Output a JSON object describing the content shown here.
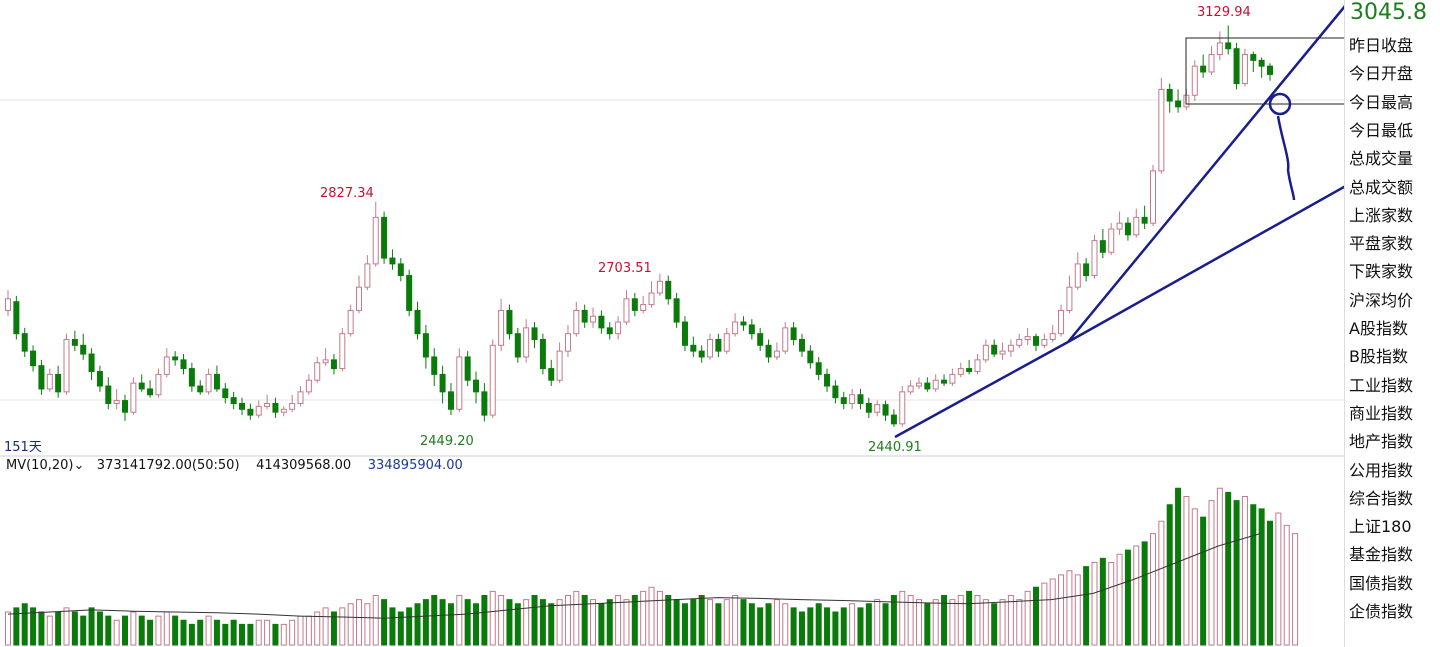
{
  "header": {
    "current_price": "3045.8"
  },
  "sidebar": {
    "items": [
      "昨日收盘",
      "今日开盘",
      "今日最高",
      "今日最低",
      "总成交量",
      "总成交额",
      "上涨家数",
      "平盘家数",
      "下跌家数",
      "沪深均价",
      "A股指数",
      "B股指数",
      "工业指数",
      "商业指数",
      "地产指数",
      "公用指数",
      "综合指数",
      "上证180",
      "基金指数",
      "国债指数",
      "企债指数"
    ]
  },
  "labels": {
    "days": "151天",
    "indicator": "MV(10,20)",
    "ma_main": "373141792.00(50:50)",
    "ma10": "414309568.00",
    "ma20": "334895904.00"
  },
  "colors": {
    "up": "#c8102e",
    "down": "#0a7a0a",
    "trend": "#1a1e8c"
  },
  "chart_data": {
    "type": "candlestick",
    "annotations": [
      {
        "text": "2827.34",
        "type": "high",
        "index": 44
      },
      {
        "text": "2449.20",
        "type": "low",
        "index": 57
      },
      {
        "text": "2703.51",
        "type": "high",
        "index": 79
      },
      {
        "text": "2440.91",
        "type": "low",
        "index": 110
      },
      {
        "text": "3129.94",
        "type": "high",
        "index": 151
      }
    ],
    "candles": [
      [
        2640,
        2660,
        2675,
        2630
      ],
      [
        2655,
        2600,
        2665,
        2590
      ],
      [
        2600,
        2570,
        2610,
        2560
      ],
      [
        2570,
        2545,
        2580,
        2535
      ],
      [
        2545,
        2505,
        2555,
        2495
      ],
      [
        2505,
        2530,
        2540,
        2500
      ],
      [
        2530,
        2500,
        2545,
        2490
      ],
      [
        2500,
        2590,
        2600,
        2495
      ],
      [
        2590,
        2580,
        2605,
        2570
      ],
      [
        2580,
        2565,
        2600,
        2555
      ],
      [
        2565,
        2535,
        2575,
        2520
      ],
      [
        2535,
        2510,
        2545,
        2500
      ],
      [
        2510,
        2480,
        2525,
        2470
      ],
      [
        2480,
        2485,
        2505,
        2470
      ],
      [
        2485,
        2465,
        2495,
        2450
      ],
      [
        2465,
        2515,
        2525,
        2460
      ],
      [
        2515,
        2505,
        2530,
        2500
      ],
      [
        2505,
        2495,
        2520,
        2490
      ],
      [
        2495,
        2530,
        2540,
        2490
      ],
      [
        2530,
        2560,
        2575,
        2525
      ],
      [
        2560,
        2555,
        2570,
        2545
      ],
      [
        2555,
        2540,
        2565,
        2530
      ],
      [
        2540,
        2510,
        2550,
        2500
      ],
      [
        2510,
        2500,
        2520,
        2495
      ],
      [
        2500,
        2530,
        2540,
        2495
      ],
      [
        2530,
        2505,
        2545,
        2500
      ],
      [
        2505,
        2490,
        2515,
        2480
      ],
      [
        2490,
        2480,
        2500,
        2470
      ],
      [
        2480,
        2470,
        2490,
        2460
      ],
      [
        2470,
        2460,
        2480,
        2452
      ],
      [
        2460,
        2475,
        2485,
        2455
      ],
      [
        2475,
        2480,
        2495,
        2470
      ],
      [
        2480,
        2465,
        2490,
        2455
      ],
      [
        2465,
        2470,
        2475,
        2458
      ],
      [
        2470,
        2480,
        2495,
        2465
      ],
      [
        2480,
        2500,
        2510,
        2475
      ],
      [
        2500,
        2520,
        2530,
        2495
      ],
      [
        2520,
        2550,
        2560,
        2515
      ],
      [
        2550,
        2555,
        2575,
        2545
      ],
      [
        2555,
        2540,
        2565,
        2530
      ],
      [
        2540,
        2600,
        2610,
        2535
      ],
      [
        2600,
        2640,
        2650,
        2595
      ],
      [
        2640,
        2680,
        2700,
        2635
      ],
      [
        2680,
        2720,
        2735,
        2675
      ],
      [
        2720,
        2800,
        2827,
        2715
      ],
      [
        2800,
        2730,
        2810,
        2720
      ],
      [
        2730,
        2720,
        2745,
        2710
      ],
      [
        2720,
        2700,
        2730,
        2690
      ],
      [
        2700,
        2640,
        2710,
        2630
      ],
      [
        2640,
        2600,
        2655,
        2590
      ],
      [
        2600,
        2560,
        2615,
        2540
      ],
      [
        2560,
        2530,
        2575,
        2510
      ],
      [
        2530,
        2500,
        2545,
        2480
      ],
      [
        2500,
        2470,
        2515,
        2460
      ],
      [
        2470,
        2560,
        2575,
        2465
      ],
      [
        2560,
        2520,
        2570,
        2510
      ],
      [
        2520,
        2500,
        2535,
        2480
      ],
      [
        2500,
        2460,
        2515,
        2449
      ],
      [
        2460,
        2580,
        2590,
        2455
      ],
      [
        2580,
        2640,
        2660,
        2570
      ],
      [
        2640,
        2600,
        2650,
        2590
      ],
      [
        2600,
        2560,
        2610,
        2550
      ],
      [
        2560,
        2610,
        2625,
        2550
      ],
      [
        2610,
        2590,
        2620,
        2575
      ],
      [
        2590,
        2540,
        2600,
        2530
      ],
      [
        2540,
        2520,
        2555,
        2510
      ],
      [
        2520,
        2570,
        2585,
        2515
      ],
      [
        2570,
        2600,
        2615,
        2560
      ],
      [
        2600,
        2640,
        2655,
        2595
      ],
      [
        2640,
        2620,
        2650,
        2610
      ],
      [
        2620,
        2630,
        2645,
        2610
      ],
      [
        2630,
        2610,
        2640,
        2600
      ],
      [
        2610,
        2600,
        2620,
        2590
      ],
      [
        2600,
        2620,
        2630,
        2590
      ],
      [
        2620,
        2660,
        2675,
        2615
      ],
      [
        2660,
        2640,
        2670,
        2630
      ],
      [
        2640,
        2650,
        2665,
        2635
      ],
      [
        2650,
        2670,
        2690,
        2645
      ],
      [
        2670,
        2690,
        2703,
        2665
      ],
      [
        2690,
        2660,
        2700,
        2650
      ],
      [
        2660,
        2620,
        2670,
        2610
      ],
      [
        2620,
        2580,
        2630,
        2570
      ],
      [
        2580,
        2570,
        2595,
        2560
      ],
      [
        2570,
        2560,
        2580,
        2550
      ],
      [
        2560,
        2590,
        2600,
        2555
      ],
      [
        2590,
        2570,
        2600,
        2560
      ],
      [
        2570,
        2600,
        2610,
        2565
      ],
      [
        2600,
        2620,
        2635,
        2595
      ],
      [
        2620,
        2615,
        2630,
        2605
      ],
      [
        2615,
        2600,
        2625,
        2590
      ],
      [
        2600,
        2580,
        2610,
        2570
      ],
      [
        2580,
        2560,
        2590,
        2550
      ],
      [
        2560,
        2570,
        2585,
        2555
      ],
      [
        2570,
        2610,
        2620,
        2565
      ],
      [
        2610,
        2590,
        2620,
        2580
      ],
      [
        2590,
        2570,
        2600,
        2560
      ],
      [
        2570,
        2550,
        2580,
        2540
      ],
      [
        2550,
        2530,
        2560,
        2520
      ],
      [
        2530,
        2510,
        2540,
        2500
      ],
      [
        2510,
        2490,
        2520,
        2480
      ],
      [
        2490,
        2480,
        2500,
        2470
      ],
      [
        2480,
        2495,
        2505,
        2470
      ],
      [
        2495,
        2480,
        2505,
        2470
      ],
      [
        2480,
        2465,
        2490,
        2455
      ],
      [
        2465,
        2478,
        2485,
        2458
      ],
      [
        2478,
        2460,
        2485,
        2450
      ],
      [
        2460,
        2445,
        2470,
        2440
      ],
      [
        2445,
        2500,
        2510,
        2440
      ],
      [
        2500,
        2510,
        2520,
        2495
      ],
      [
        2510,
        2515,
        2525,
        2505
      ],
      [
        2515,
        2505,
        2525,
        2500
      ],
      [
        2505,
        2520,
        2530,
        2500
      ],
      [
        2520,
        2515,
        2530,
        2510
      ],
      [
        2515,
        2530,
        2540,
        2510
      ],
      [
        2530,
        2540,
        2550,
        2525
      ],
      [
        2540,
        2535,
        2555,
        2530
      ],
      [
        2535,
        2555,
        2565,
        2530
      ],
      [
        2555,
        2580,
        2590,
        2550
      ],
      [
        2580,
        2565,
        2590,
        2560
      ],
      [
        2565,
        2570,
        2585,
        2555
      ],
      [
        2570,
        2580,
        2590,
        2560
      ],
      [
        2580,
        2590,
        2600,
        2575
      ],
      [
        2590,
        2595,
        2610,
        2580
      ],
      [
        2595,
        2580,
        2600,
        2570
      ],
      [
        2580,
        2590,
        2600,
        2575
      ],
      [
        2590,
        2600,
        2615,
        2585
      ],
      [
        2600,
        2640,
        2650,
        2595
      ],
      [
        2640,
        2680,
        2700,
        2635
      ],
      [
        2680,
        2720,
        2740,
        2675
      ],
      [
        2720,
        2700,
        2730,
        2690
      ],
      [
        2700,
        2760,
        2770,
        2695
      ],
      [
        2760,
        2740,
        2780,
        2730
      ],
      [
        2740,
        2780,
        2790,
        2735
      ],
      [
        2780,
        2790,
        2810,
        2770
      ],
      [
        2790,
        2770,
        2800,
        2760
      ],
      [
        2770,
        2800,
        2815,
        2765
      ],
      [
        2800,
        2790,
        2820,
        2780
      ],
      [
        2790,
        2880,
        2890,
        2785
      ],
      [
        2880,
        3020,
        3040,
        2875
      ],
      [
        3020,
        3000,
        3030,
        2980
      ],
      [
        3000,
        2990,
        3020,
        2980
      ],
      [
        2990,
        3010,
        3020,
        2985
      ],
      [
        3010,
        3060,
        3070,
        3000
      ],
      [
        3060,
        3050,
        3080,
        3040
      ],
      [
        3050,
        3080,
        3095,
        3045
      ],
      [
        3080,
        3100,
        3120,
        3070
      ],
      [
        3100,
        3090,
        3129.94,
        3080
      ],
      [
        3090,
        3030,
        3100,
        3020
      ],
      [
        3030,
        3080,
        3090,
        3025
      ],
      [
        3080,
        3070,
        3085,
        3050
      ],
      [
        3070,
        3060,
        3075,
        3040
      ],
      [
        3060,
        3045.8,
        3065,
        3035
      ]
    ],
    "volumes": [
      8,
      9,
      10,
      9,
      8,
      7,
      8,
      9,
      8,
      7,
      9,
      8,
      7,
      6,
      7,
      8,
      7,
      6,
      7,
      8,
      7,
      6,
      5,
      6,
      7,
      6,
      5,
      6,
      5,
      5,
      6,
      6,
      5,
      5,
      6,
      7,
      7,
      8,
      9,
      8,
      9,
      10,
      11,
      10,
      12,
      11,
      9,
      8,
      9,
      10,
      11,
      12,
      11,
      10,
      12,
      11,
      10,
      12,
      13,
      12,
      11,
      10,
      11,
      12,
      11,
      10,
      11,
      12,
      13,
      12,
      11,
      10,
      11,
      12,
      11,
      12,
      13,
      14,
      13,
      12,
      11,
      10,
      11,
      12,
      11,
      10,
      11,
      12,
      11,
      10,
      9,
      10,
      11,
      10,
      9,
      8,
      9,
      10,
      9,
      8,
      9,
      10,
      9,
      10,
      11,
      10,
      12,
      13,
      12,
      11,
      10,
      11,
      12,
      11,
      12,
      13,
      12,
      11,
      10,
      11,
      12,
      11,
      13,
      14,
      15,
      16,
      17,
      18,
      17,
      19,
      20,
      21,
      20,
      22,
      23,
      24,
      25,
      27,
      30,
      34,
      38,
      36,
      33,
      31,
      35,
      38,
      37,
      35,
      36,
      34,
      33,
      30,
      32,
      29,
      27
    ],
    "ma_line_values": [
      7.5,
      8,
      8.5,
      8.2,
      8,
      7.8,
      7.5,
      7,
      6.8,
      6.5,
      7,
      7.5,
      8.5,
      9.5,
      10,
      10.5,
      11,
      11.5,
      11.3,
      11,
      10.8,
      10.5,
      10.2,
      10,
      10.5,
      11,
      12.5,
      16,
      20,
      24,
      27
    ]
  }
}
